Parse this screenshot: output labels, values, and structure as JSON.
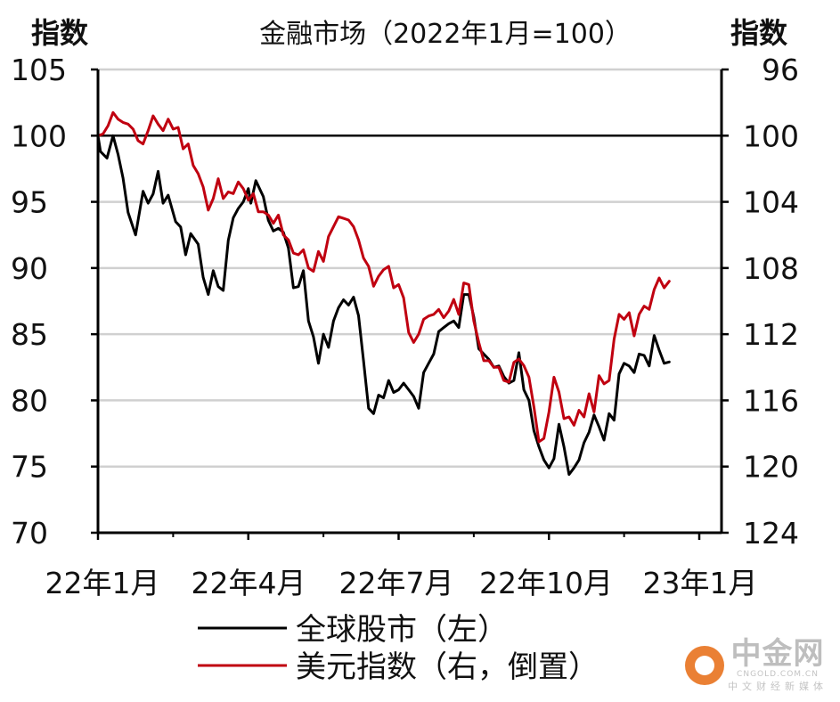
{
  "chart_data": {
    "type": "line",
    "title": "金融市场（2022年1月=100）",
    "left_axis_title": "指数",
    "right_axis_title": "指数",
    "left_axis": {
      "range": [
        70,
        105
      ],
      "ticks": [
        "70",
        "75",
        "80",
        "85",
        "90",
        "95",
        "100",
        "105"
      ]
    },
    "right_axis": {
      "range": [
        124,
        96
      ],
      "inverted": true,
      "ticks": [
        "124",
        "120",
        "116",
        "112",
        "108",
        "104",
        "100",
        "96"
      ]
    },
    "x_axis": {
      "range": [
        0,
        12
      ],
      "ticks": [
        {
          "pos": 0,
          "label": "22年1月"
        },
        {
          "pos": 3,
          "label": "22年4月"
        },
        {
          "pos": 6,
          "label": "22年7月"
        },
        {
          "pos": 9,
          "label": "22年10月"
        },
        {
          "pos": 12,
          "label": "23年1月"
        }
      ]
    },
    "reference_line": 100,
    "grid": true,
    "legend_position": "bottom",
    "series": [
      {
        "name": "全球股市（左）",
        "axis": "left",
        "color": "#000000",
        "points": [
          [
            0.0,
            100
          ],
          [
            0.05,
            98.8
          ],
          [
            0.18,
            98.3
          ],
          [
            0.3,
            100
          ],
          [
            0.4,
            98.6
          ],
          [
            0.5,
            96.8
          ],
          [
            0.6,
            94.2
          ],
          [
            0.75,
            92.5
          ],
          [
            0.9,
            95.8
          ],
          [
            1.0,
            94.9
          ],
          [
            1.1,
            95.6
          ],
          [
            1.2,
            97.3
          ],
          [
            1.3,
            94.9
          ],
          [
            1.4,
            95.5
          ],
          [
            1.55,
            93.5
          ],
          [
            1.65,
            93.1
          ],
          [
            1.75,
            91.0
          ],
          [
            1.85,
            92.6
          ],
          [
            2.0,
            91.8
          ],
          [
            2.1,
            89.3
          ],
          [
            2.2,
            88.0
          ],
          [
            2.3,
            89.8
          ],
          [
            2.4,
            88.6
          ],
          [
            2.5,
            88.3
          ],
          [
            2.6,
            92.1
          ],
          [
            2.7,
            93.8
          ],
          [
            2.8,
            94.5
          ],
          [
            2.9,
            95.0
          ],
          [
            3.0,
            96.0
          ],
          [
            3.05,
            94.9
          ],
          [
            3.15,
            96.6
          ],
          [
            3.3,
            95.4
          ],
          [
            3.4,
            93.6
          ],
          [
            3.5,
            92.8
          ],
          [
            3.6,
            93.0
          ],
          [
            3.7,
            92.7
          ],
          [
            3.8,
            91.5
          ],
          [
            3.9,
            88.5
          ],
          [
            4.0,
            88.6
          ],
          [
            4.1,
            89.8
          ],
          [
            4.2,
            86.0
          ],
          [
            4.3,
            84.8
          ],
          [
            4.4,
            82.8
          ],
          [
            4.5,
            85.0
          ],
          [
            4.6,
            84.0
          ],
          [
            4.7,
            86.0
          ],
          [
            4.8,
            87.0
          ],
          [
            4.9,
            87.6
          ],
          [
            5.0,
            87.2
          ],
          [
            5.1,
            87.8
          ],
          [
            5.2,
            86.4
          ],
          [
            5.3,
            83.0
          ],
          [
            5.4,
            79.4
          ],
          [
            5.5,
            79.0
          ],
          [
            5.6,
            80.4
          ],
          [
            5.7,
            80.2
          ],
          [
            5.8,
            81.5
          ],
          [
            5.9,
            80.6
          ],
          [
            6.0,
            80.8
          ],
          [
            6.1,
            81.3
          ],
          [
            6.2,
            80.8
          ],
          [
            6.3,
            80.3
          ],
          [
            6.4,
            79.4
          ],
          [
            6.5,
            82.1
          ],
          [
            6.6,
            82.8
          ],
          [
            6.7,
            83.5
          ],
          [
            6.8,
            85.2
          ],
          [
            6.9,
            85.5
          ],
          [
            7.0,
            85.8
          ],
          [
            7.1,
            86.0
          ],
          [
            7.2,
            85.5
          ],
          [
            7.3,
            88.0
          ],
          [
            7.4,
            88.0
          ],
          [
            7.5,
            86.3
          ],
          [
            7.6,
            83.9
          ],
          [
            7.7,
            83.5
          ],
          [
            7.8,
            83.1
          ],
          [
            7.9,
            82.5
          ],
          [
            8.0,
            82.6
          ],
          [
            8.1,
            81.8
          ],
          [
            8.2,
            81.3
          ],
          [
            8.3,
            81.5
          ],
          [
            8.4,
            83.6
          ],
          [
            8.5,
            80.8
          ],
          [
            8.6,
            80.0
          ],
          [
            8.7,
            77.7
          ],
          [
            8.8,
            76.5
          ],
          [
            8.9,
            75.5
          ],
          [
            9.0,
            74.9
          ],
          [
            9.1,
            75.6
          ],
          [
            9.2,
            78.2
          ],
          [
            9.3,
            76.5
          ],
          [
            9.4,
            74.4
          ],
          [
            9.5,
            74.9
          ],
          [
            9.6,
            75.5
          ],
          [
            9.7,
            76.8
          ],
          [
            9.8,
            77.6
          ],
          [
            9.9,
            78.9
          ],
          [
            10.0,
            78.0
          ],
          [
            10.1,
            77.0
          ],
          [
            10.2,
            79.0
          ],
          [
            10.3,
            78.5
          ],
          [
            10.4,
            82.0
          ],
          [
            10.5,
            82.8
          ],
          [
            10.6,
            82.6
          ],
          [
            10.7,
            82.1
          ],
          [
            10.8,
            83.5
          ],
          [
            10.9,
            83.4
          ],
          [
            11.0,
            82.6
          ],
          [
            11.1,
            84.9
          ],
          [
            11.2,
            83.8
          ],
          [
            11.3,
            82.8
          ],
          [
            11.4,
            82.9
          ]
        ]
      },
      {
        "name": "美元指数（右，倒置）",
        "axis": "right",
        "color": "#c00010",
        "points": [
          [
            0.0,
            100.0
          ],
          [
            0.1,
            99.9
          ],
          [
            0.2,
            99.4
          ],
          [
            0.3,
            98.6
          ],
          [
            0.4,
            99.0
          ],
          [
            0.5,
            99.2
          ],
          [
            0.6,
            99.3
          ],
          [
            0.7,
            99.6
          ],
          [
            0.8,
            100.3
          ],
          [
            0.9,
            100.5
          ],
          [
            1.0,
            99.7
          ],
          [
            1.1,
            98.8
          ],
          [
            1.2,
            99.3
          ],
          [
            1.3,
            99.7
          ],
          [
            1.4,
            99.0
          ],
          [
            1.5,
            99.6
          ],
          [
            1.6,
            99.5
          ],
          [
            1.7,
            100.8
          ],
          [
            1.8,
            100.5
          ],
          [
            1.9,
            101.8
          ],
          [
            2.0,
            102.3
          ],
          [
            2.1,
            103.1
          ],
          [
            2.2,
            104.5
          ],
          [
            2.3,
            103.8
          ],
          [
            2.4,
            102.6
          ],
          [
            2.5,
            103.8
          ],
          [
            2.6,
            103.4
          ],
          [
            2.7,
            103.5
          ],
          [
            2.8,
            102.8
          ],
          [
            2.9,
            103.2
          ],
          [
            3.0,
            103.9
          ],
          [
            3.1,
            103.5
          ],
          [
            3.2,
            104.6
          ],
          [
            3.3,
            104.6
          ],
          [
            3.4,
            104.8
          ],
          [
            3.5,
            105.3
          ],
          [
            3.6,
            104.8
          ],
          [
            3.7,
            106.0
          ],
          [
            3.8,
            106.3
          ],
          [
            3.9,
            107.1
          ],
          [
            4.0,
            107.2
          ],
          [
            4.1,
            106.9
          ],
          [
            4.2,
            108.0
          ],
          [
            4.3,
            108.2
          ],
          [
            4.4,
            107.0
          ],
          [
            4.5,
            107.6
          ],
          [
            4.6,
            106.1
          ],
          [
            4.7,
            105.5
          ],
          [
            4.8,
            104.9
          ],
          [
            4.9,
            105.0
          ],
          [
            5.0,
            105.1
          ],
          [
            5.1,
            105.5
          ],
          [
            5.2,
            106.3
          ],
          [
            5.3,
            107.4
          ],
          [
            5.4,
            107.9
          ],
          [
            5.5,
            109.1
          ],
          [
            5.6,
            108.5
          ],
          [
            5.7,
            108.1
          ],
          [
            5.8,
            107.9
          ],
          [
            5.9,
            109.2
          ],
          [
            6.0,
            109.0
          ],
          [
            6.1,
            109.8
          ],
          [
            6.2,
            111.9
          ],
          [
            6.3,
            112.5
          ],
          [
            6.4,
            112.0
          ],
          [
            6.5,
            111.1
          ],
          [
            6.6,
            110.9
          ],
          [
            6.7,
            110.8
          ],
          [
            6.8,
            110.5
          ],
          [
            6.9,
            111.0
          ],
          [
            7.0,
            110.6
          ],
          [
            7.1,
            109.9
          ],
          [
            7.2,
            110.8
          ],
          [
            7.3,
            108.9
          ],
          [
            7.4,
            109.0
          ],
          [
            7.5,
            111.2
          ],
          [
            7.6,
            112.5
          ],
          [
            7.7,
            113.6
          ],
          [
            7.8,
            113.6
          ],
          [
            7.9,
            114.0
          ],
          [
            8.0,
            114.0
          ],
          [
            8.1,
            114.8
          ],
          [
            8.2,
            114.9
          ],
          [
            8.3,
            113.7
          ],
          [
            8.4,
            113.5
          ],
          [
            8.5,
            113.9
          ],
          [
            8.6,
            114.6
          ],
          [
            8.7,
            116.4
          ],
          [
            8.8,
            118.5
          ],
          [
            8.9,
            118.3
          ],
          [
            9.0,
            116.7
          ],
          [
            9.1,
            114.6
          ],
          [
            9.2,
            115.5
          ],
          [
            9.3,
            117.1
          ],
          [
            9.4,
            117.0
          ],
          [
            9.5,
            117.5
          ],
          [
            9.6,
            116.6
          ],
          [
            9.7,
            117.0
          ],
          [
            9.8,
            115.6
          ],
          [
            9.9,
            116.7
          ],
          [
            10.0,
            114.5
          ],
          [
            10.1,
            115.0
          ],
          [
            10.2,
            114.8
          ],
          [
            10.3,
            112.3
          ],
          [
            10.4,
            110.8
          ],
          [
            10.5,
            111.1
          ],
          [
            10.6,
            110.7
          ],
          [
            10.7,
            112.1
          ],
          [
            10.8,
            110.8
          ],
          [
            10.9,
            110.3
          ],
          [
            11.0,
            110.5
          ],
          [
            11.1,
            109.3
          ],
          [
            11.2,
            108.6
          ],
          [
            11.3,
            109.2
          ],
          [
            11.4,
            108.8
          ]
        ]
      }
    ]
  },
  "watermark": {
    "main": "中金网",
    "sub_domain": "CNGOLD.COM.CN",
    "sub_text": "中文财经新媒体"
  }
}
